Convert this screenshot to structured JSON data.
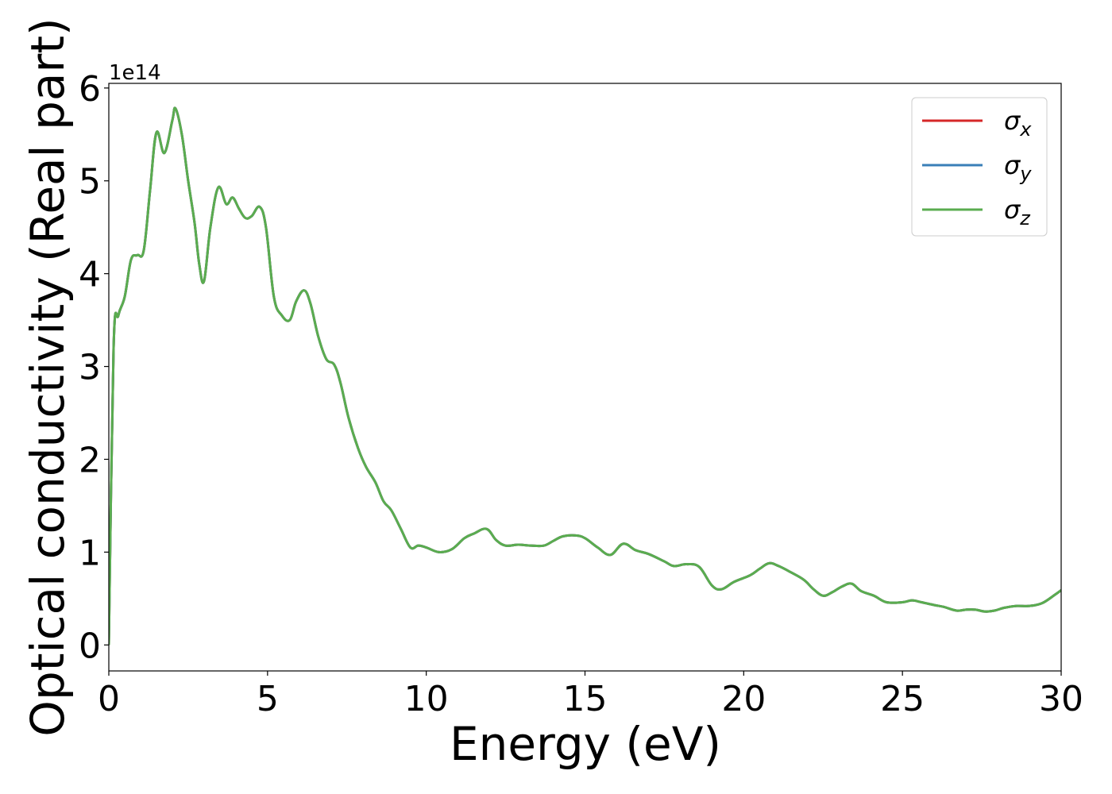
{
  "chart_data": {
    "type": "line",
    "title": "",
    "xlabel": "Energy (eV)",
    "ylabel": "Optical conductivity (Real part)",
    "y_offset_label": "1e14",
    "y_scale_multiplier": 100000000000000.0,
    "xlim": [
      0,
      30
    ],
    "ylim": [
      -0.28,
      6.05
    ],
    "xticks": [
      0,
      5,
      10,
      15,
      20,
      25,
      30
    ],
    "yticks": [
      0,
      1,
      2,
      3,
      4,
      5,
      6
    ],
    "grid": false,
    "legend_position": "top-right",
    "series": [
      {
        "name": "σx",
        "symbol": "σ",
        "subscript": "x",
        "color": "#d62728",
        "x": [
          0,
          0.15,
          0.3,
          0.5,
          0.7,
          0.9,
          1.1,
          1.3,
          1.5,
          1.75,
          2.0,
          2.1,
          2.3,
          2.5,
          2.7,
          2.85,
          3.0,
          3.2,
          3.45,
          3.7,
          3.9,
          4.1,
          4.3,
          4.5,
          4.75,
          4.95,
          5.2,
          5.45,
          5.7,
          5.9,
          6.15,
          6.35,
          6.6,
          6.85,
          7.1,
          7.3,
          7.55,
          7.85,
          8.1,
          8.4,
          8.65,
          8.9,
          9.2,
          9.5,
          9.75,
          10.0,
          10.4,
          10.8,
          11.2,
          11.5,
          11.9,
          12.2,
          12.5,
          12.9,
          13.3,
          13.7,
          14.0,
          14.3,
          14.7,
          15.0,
          15.4,
          15.8,
          16.2,
          16.6,
          17.0,
          17.5,
          17.8,
          18.2,
          18.6,
          19.0,
          19.3,
          19.7,
          20.2,
          20.5,
          20.8,
          21.1,
          21.5,
          21.9,
          22.2,
          22.5,
          22.8,
          23.1,
          23.4,
          23.7,
          24.1,
          24.5,
          25.0,
          25.3,
          25.6,
          26.0,
          26.3,
          26.7,
          27.0,
          27.3,
          27.6,
          27.9,
          28.2,
          28.6,
          29.0,
          29.4,
          29.8,
          30.0
        ],
        "values": [
          0.0,
          3.2,
          3.55,
          3.75,
          4.15,
          4.2,
          4.25,
          4.9,
          5.52,
          5.3,
          5.65,
          5.78,
          5.5,
          5.0,
          4.55,
          4.1,
          3.92,
          4.5,
          4.93,
          4.75,
          4.82,
          4.7,
          4.6,
          4.62,
          4.72,
          4.5,
          3.75,
          3.55,
          3.5,
          3.7,
          3.82,
          3.68,
          3.32,
          3.08,
          3.02,
          2.82,
          2.45,
          2.12,
          1.92,
          1.75,
          1.55,
          1.45,
          1.25,
          1.05,
          1.07,
          1.05,
          1.0,
          1.03,
          1.15,
          1.2,
          1.25,
          1.13,
          1.07,
          1.08,
          1.07,
          1.07,
          1.12,
          1.17,
          1.18,
          1.15,
          1.05,
          0.97,
          1.09,
          1.02,
          0.98,
          0.9,
          0.85,
          0.87,
          0.84,
          0.64,
          0.6,
          0.68,
          0.75,
          0.82,
          0.88,
          0.85,
          0.78,
          0.7,
          0.6,
          0.53,
          0.57,
          0.63,
          0.66,
          0.58,
          0.53,
          0.46,
          0.46,
          0.48,
          0.46,
          0.43,
          0.41,
          0.37,
          0.38,
          0.38,
          0.36,
          0.37,
          0.4,
          0.42,
          0.42,
          0.45,
          0.54,
          0.59
        ]
      },
      {
        "name": "σy",
        "symbol": "σ",
        "subscript": "y",
        "color": "#3a7fb8",
        "x": [
          0,
          0.15,
          0.3,
          0.5,
          0.7,
          0.9,
          1.1,
          1.3,
          1.5,
          1.75,
          2.0,
          2.1,
          2.3,
          2.5,
          2.7,
          2.85,
          3.0,
          3.2,
          3.45,
          3.7,
          3.9,
          4.1,
          4.3,
          4.5,
          4.75,
          4.95,
          5.2,
          5.45,
          5.7,
          5.9,
          6.15,
          6.35,
          6.6,
          6.85,
          7.1,
          7.3,
          7.55,
          7.85,
          8.1,
          8.4,
          8.65,
          8.9,
          9.2,
          9.5,
          9.75,
          10.0,
          10.4,
          10.8,
          11.2,
          11.5,
          11.9,
          12.2,
          12.5,
          12.9,
          13.3,
          13.7,
          14.0,
          14.3,
          14.7,
          15.0,
          15.4,
          15.8,
          16.2,
          16.6,
          17.0,
          17.5,
          17.8,
          18.2,
          18.6,
          19.0,
          19.3,
          19.7,
          20.2,
          20.5,
          20.8,
          21.1,
          21.5,
          21.9,
          22.2,
          22.5,
          22.8,
          23.1,
          23.4,
          23.7,
          24.1,
          24.5,
          25.0,
          25.3,
          25.6,
          26.0,
          26.3,
          26.7,
          27.0,
          27.3,
          27.6,
          27.9,
          28.2,
          28.6,
          29.0,
          29.4,
          29.8,
          30.0
        ],
        "values": [
          0.0,
          3.2,
          3.55,
          3.75,
          4.15,
          4.2,
          4.25,
          4.9,
          5.52,
          5.3,
          5.65,
          5.78,
          5.5,
          5.0,
          4.55,
          4.1,
          3.92,
          4.5,
          4.93,
          4.75,
          4.82,
          4.7,
          4.6,
          4.62,
          4.72,
          4.5,
          3.75,
          3.55,
          3.5,
          3.7,
          3.82,
          3.68,
          3.32,
          3.08,
          3.02,
          2.82,
          2.45,
          2.12,
          1.92,
          1.75,
          1.55,
          1.45,
          1.25,
          1.05,
          1.07,
          1.05,
          1.0,
          1.03,
          1.15,
          1.2,
          1.25,
          1.13,
          1.07,
          1.08,
          1.07,
          1.07,
          1.12,
          1.17,
          1.18,
          1.15,
          1.05,
          0.97,
          1.09,
          1.02,
          0.98,
          0.9,
          0.85,
          0.87,
          0.84,
          0.64,
          0.6,
          0.68,
          0.75,
          0.82,
          0.88,
          0.85,
          0.78,
          0.7,
          0.6,
          0.53,
          0.57,
          0.63,
          0.66,
          0.58,
          0.53,
          0.46,
          0.46,
          0.48,
          0.46,
          0.43,
          0.41,
          0.37,
          0.38,
          0.38,
          0.36,
          0.37,
          0.4,
          0.42,
          0.42,
          0.45,
          0.54,
          0.59
        ]
      },
      {
        "name": "σz",
        "symbol": "σ",
        "subscript": "z",
        "color": "#5aac4f",
        "x": [
          0,
          0.15,
          0.3,
          0.5,
          0.7,
          0.9,
          1.1,
          1.3,
          1.5,
          1.75,
          2.0,
          2.1,
          2.3,
          2.5,
          2.7,
          2.85,
          3.0,
          3.2,
          3.45,
          3.7,
          3.9,
          4.1,
          4.3,
          4.5,
          4.75,
          4.95,
          5.2,
          5.45,
          5.7,
          5.9,
          6.15,
          6.35,
          6.6,
          6.85,
          7.1,
          7.3,
          7.55,
          7.85,
          8.1,
          8.4,
          8.65,
          8.9,
          9.2,
          9.5,
          9.75,
          10.0,
          10.4,
          10.8,
          11.2,
          11.5,
          11.9,
          12.2,
          12.5,
          12.9,
          13.3,
          13.7,
          14.0,
          14.3,
          14.7,
          15.0,
          15.4,
          15.8,
          16.2,
          16.6,
          17.0,
          17.5,
          17.8,
          18.2,
          18.6,
          19.0,
          19.3,
          19.7,
          20.2,
          20.5,
          20.8,
          21.1,
          21.5,
          21.9,
          22.2,
          22.5,
          22.8,
          23.1,
          23.4,
          23.7,
          24.1,
          24.5,
          25.0,
          25.3,
          25.6,
          26.0,
          26.3,
          26.7,
          27.0,
          27.3,
          27.6,
          27.9,
          28.2,
          28.6,
          29.0,
          29.4,
          29.8,
          30.0
        ],
        "values": [
          0.0,
          3.2,
          3.55,
          3.75,
          4.15,
          4.2,
          4.25,
          4.9,
          5.52,
          5.3,
          5.65,
          5.78,
          5.5,
          5.0,
          4.55,
          4.1,
          3.92,
          4.5,
          4.93,
          4.75,
          4.82,
          4.7,
          4.6,
          4.62,
          4.72,
          4.5,
          3.75,
          3.55,
          3.5,
          3.7,
          3.82,
          3.68,
          3.32,
          3.08,
          3.02,
          2.82,
          2.45,
          2.12,
          1.92,
          1.75,
          1.55,
          1.45,
          1.25,
          1.05,
          1.07,
          1.05,
          1.0,
          1.03,
          1.15,
          1.2,
          1.25,
          1.13,
          1.07,
          1.08,
          1.07,
          1.07,
          1.12,
          1.17,
          1.18,
          1.15,
          1.05,
          0.97,
          1.09,
          1.02,
          0.98,
          0.9,
          0.85,
          0.87,
          0.84,
          0.64,
          0.6,
          0.68,
          0.75,
          0.82,
          0.88,
          0.85,
          0.78,
          0.7,
          0.6,
          0.53,
          0.57,
          0.63,
          0.66,
          0.58,
          0.53,
          0.46,
          0.46,
          0.48,
          0.46,
          0.43,
          0.41,
          0.37,
          0.38,
          0.38,
          0.36,
          0.37,
          0.4,
          0.42,
          0.42,
          0.45,
          0.54,
          0.59
        ]
      }
    ]
  }
}
